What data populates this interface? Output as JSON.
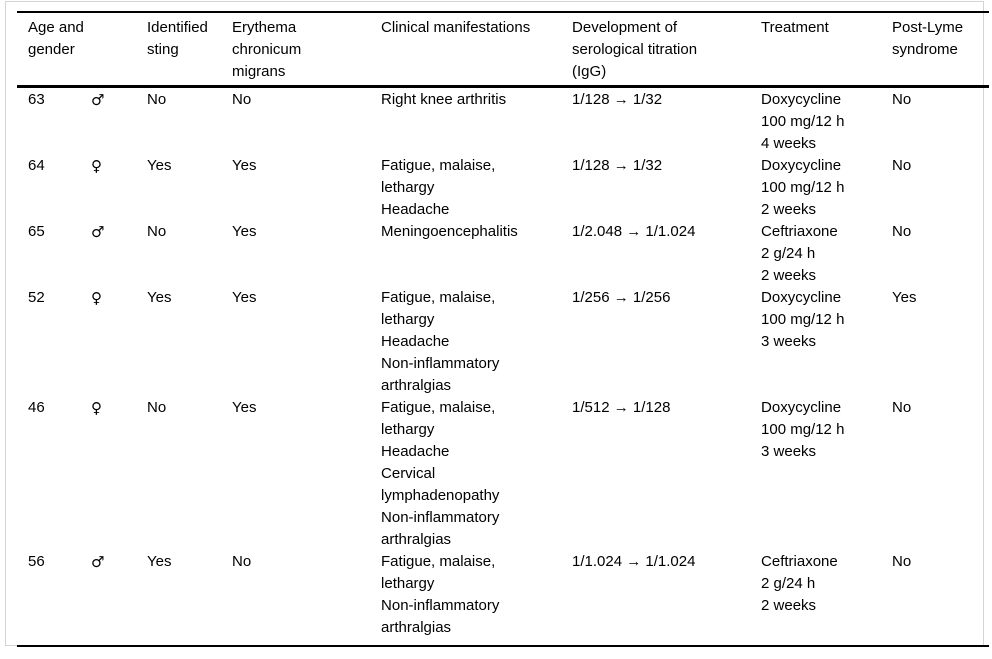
{
  "page": {
    "background_color": "#ffffff",
    "frame_border_color": "#d4d4d4",
    "rule_color": "#000000",
    "text_color": "#000000"
  },
  "table": {
    "headers": {
      "age_gender": "Age and gender",
      "identified_sting": "Identified sting",
      "erythema": "Erythema chronicum migrans",
      "clinical": "Clinical manifestations",
      "serology": "Development of serological titration (IgG)",
      "treatment": "Treatment",
      "post_lyme": "Post-Lyme syndrome"
    },
    "rows": [
      {
        "age": "63",
        "gender_symbol": "♂",
        "identified_sting": "No",
        "erythema_chronicum_migrans": "No",
        "clinical_manifestations": [
          "Right knee arthritis"
        ],
        "serological_titration": "1/128 → 1/32",
        "treatment": [
          "Doxycycline",
          "100 mg/12 h",
          "4 weeks"
        ],
        "post_lyme_syndrome": "No"
      },
      {
        "age": "64",
        "gender_symbol": "♀",
        "identified_sting": "Yes",
        "erythema_chronicum_migrans": "Yes",
        "clinical_manifestations": [
          "Fatigue, malaise, lethargy",
          "Headache"
        ],
        "serological_titration": "1/128 → 1/32",
        "treatment": [
          "Doxycycline",
          "100 mg/12 h",
          "2 weeks"
        ],
        "post_lyme_syndrome": "No"
      },
      {
        "age": "65",
        "gender_symbol": "♂",
        "identified_sting": "No",
        "erythema_chronicum_migrans": "Yes",
        "clinical_manifestations": [
          "Meningoencephalitis"
        ],
        "serological_titration": "1/2.048 → 1/1.024",
        "treatment": [
          "Ceftriaxone",
          "2 g/24 h",
          "2 weeks"
        ],
        "post_lyme_syndrome": "No"
      },
      {
        "age": "52",
        "gender_symbol": "♀",
        "identified_sting": "Yes",
        "erythema_chronicum_migrans": "Yes",
        "clinical_manifestations": [
          "Fatigue, malaise, lethargy",
          "Headache",
          "Non-inflammatory arthralgias"
        ],
        "serological_titration": "1/256 → 1/256",
        "treatment": [
          "Doxycycline",
          "100 mg/12 h",
          "3 weeks"
        ],
        "post_lyme_syndrome": "Yes"
      },
      {
        "age": "46",
        "gender_symbol": "♀",
        "identified_sting": "No",
        "erythema_chronicum_migrans": "Yes",
        "clinical_manifestations": [
          "Fatigue, malaise, lethargy",
          "Headache",
          "Cervical lymphadenopathy",
          "Non-inflammatory arthralgias"
        ],
        "serological_titration": "1/512 → 1/128",
        "treatment": [
          "Doxycycline",
          "100 mg/12 h",
          "3 weeks"
        ],
        "post_lyme_syndrome": "No"
      },
      {
        "age": "56",
        "gender_symbol": "♂",
        "identified_sting": "Yes",
        "erythema_chronicum_migrans": "No",
        "clinical_manifestations": [
          "Fatigue, malaise, lethargy",
          "Non-inflammatory arthralgias"
        ],
        "serological_titration": "1/1.024 → 1/1.024",
        "treatment": [
          "Ceftriaxone",
          "2 g/24 h",
          "2 weeks"
        ],
        "post_lyme_syndrome": "No"
      }
    ]
  }
}
